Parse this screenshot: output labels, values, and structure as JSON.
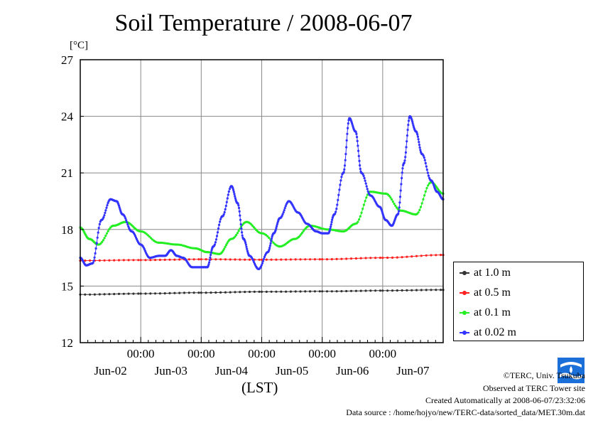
{
  "chart_data": {
    "type": "line",
    "title": "Soil Temperature / 2008-06-07",
    "unit_label": "[°C]",
    "xlabel": "(LST)",
    "ylim": [
      12,
      27
    ],
    "yticks": [
      12,
      15,
      18,
      21,
      24,
      27
    ],
    "grid": true,
    "legend_position": "right",
    "x_range_days": [
      0,
      6
    ],
    "time_labels": [
      "00:00",
      "00:00",
      "00:00",
      "00:00",
      "00:00"
    ],
    "time_label_days": [
      1,
      2,
      3,
      4,
      5
    ],
    "date_labels": [
      "Jun-02",
      "Jun-03",
      "Jun-04",
      "Jun-05",
      "Jun-06",
      "Jun-07"
    ],
    "date_label_days": [
      0.5,
      1.5,
      2.5,
      3.5,
      4.5,
      5.5
    ],
    "series": [
      {
        "name": "at 1.0 m",
        "color": "#333333",
        "x": [
          0,
          1,
          2,
          3,
          4,
          5,
          6
        ],
        "y": [
          14.55,
          14.6,
          14.65,
          14.7,
          14.72,
          14.76,
          14.8
        ]
      },
      {
        "name": "at 0.5 m",
        "color": "#ff2020",
        "x": [
          0,
          1,
          2,
          3,
          4,
          5,
          6
        ],
        "y": [
          16.35,
          16.38,
          16.42,
          16.4,
          16.42,
          16.5,
          16.65
        ]
      },
      {
        "name": "at 0.1 m",
        "color": "#22ee22",
        "x": [
          0,
          0.15,
          0.3,
          0.55,
          0.75,
          1.0,
          1.3,
          1.6,
          1.9,
          2.1,
          2.3,
          2.5,
          2.75,
          3.0,
          3.3,
          3.55,
          3.8,
          4.1,
          4.35,
          4.55,
          4.8,
          5.05,
          5.3,
          5.55,
          5.8,
          6.0
        ],
        "y": [
          18.1,
          17.5,
          17.2,
          18.2,
          18.4,
          17.9,
          17.3,
          17.2,
          17.0,
          16.8,
          16.7,
          17.5,
          18.4,
          17.8,
          17.1,
          17.5,
          18.2,
          18.0,
          17.9,
          18.3,
          20.0,
          19.9,
          19.0,
          18.8,
          20.5,
          19.9
        ]
      },
      {
        "name": "at 0.02 m",
        "color": "#3333ff",
        "x": [
          0,
          0.1,
          0.2,
          0.35,
          0.5,
          0.6,
          0.7,
          0.85,
          1.0,
          1.15,
          1.3,
          1.4,
          1.5,
          1.6,
          1.7,
          1.85,
          2.0,
          2.1,
          2.2,
          2.35,
          2.5,
          2.6,
          2.7,
          2.8,
          2.95,
          3.1,
          3.2,
          3.3,
          3.45,
          3.6,
          3.75,
          3.9,
          4.0,
          4.1,
          4.2,
          4.35,
          4.45,
          4.55,
          4.65,
          4.8,
          4.95,
          5.05,
          5.15,
          5.25,
          5.35,
          5.45,
          5.55,
          5.65,
          5.8,
          5.9,
          6.0
        ],
        "y": [
          16.5,
          16.1,
          16.2,
          18.5,
          19.6,
          19.5,
          18.8,
          17.9,
          17.2,
          16.5,
          16.6,
          16.6,
          16.9,
          16.6,
          16.5,
          16.0,
          16.0,
          16.0,
          17.1,
          18.7,
          20.3,
          19.4,
          17.5,
          16.6,
          15.9,
          16.8,
          17.8,
          18.6,
          19.5,
          18.9,
          18.3,
          17.9,
          17.8,
          17.8,
          18.8,
          21.0,
          23.9,
          23.2,
          21.0,
          19.8,
          19.2,
          18.5,
          18.2,
          18.8,
          21.5,
          24.0,
          23.2,
          22.0,
          20.6,
          20.0,
          19.6
        ]
      }
    ]
  },
  "credits": {
    "copyright": "©TERC, Univ. Tsukuba",
    "observed": "Observed at TERC Tower site",
    "created": "Created Automatically at 2008-06-07/23:32:06",
    "source": "Data source : /home/hojyo/new/TERC-data/sorted_data/MET.30m.dat",
    "logo_text": "TERC"
  }
}
